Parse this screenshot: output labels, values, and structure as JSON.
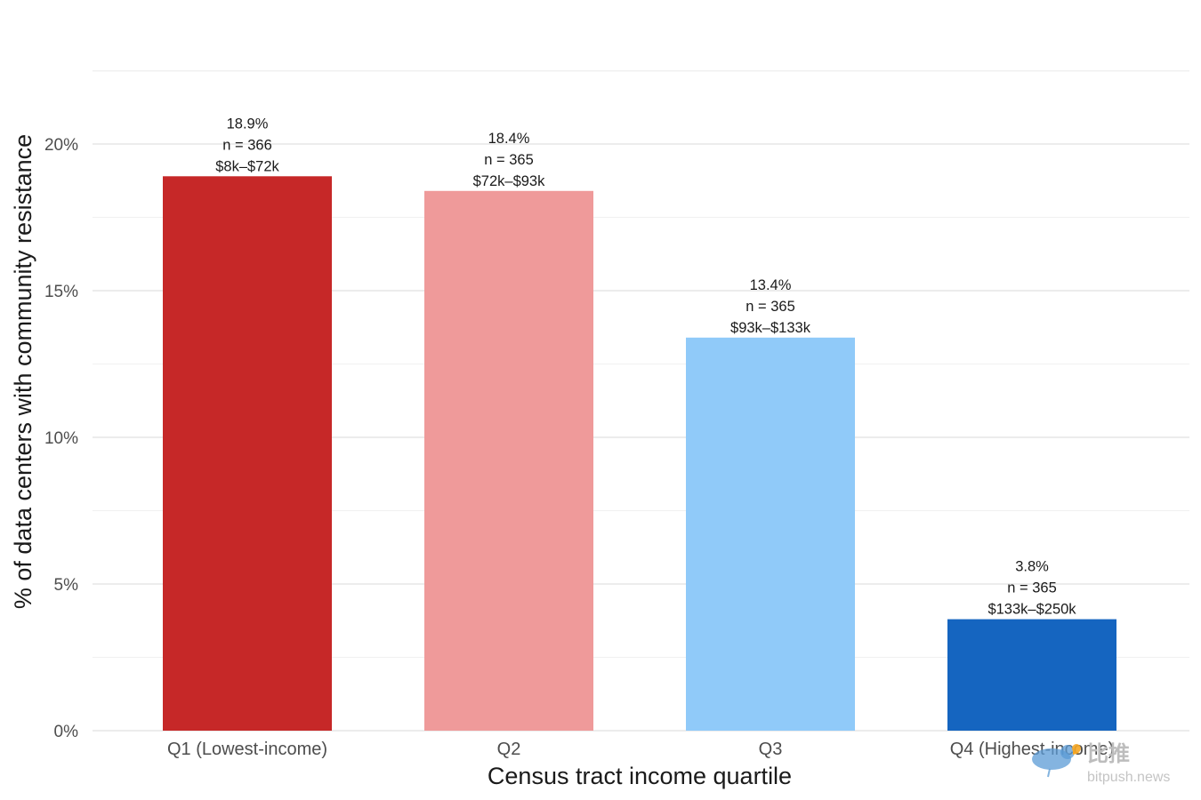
{
  "chart_data": {
    "type": "bar",
    "categories": [
      "Q1 (Lowest-income)",
      "Q2",
      "Q3",
      "Q4 (Highest-income)"
    ],
    "values": [
      18.9,
      18.4,
      13.4,
      3.8
    ],
    "value_labels": [
      "18.9%",
      "18.4%",
      "13.4%",
      "3.8%"
    ],
    "n_labels": [
      "n = 366",
      "n = 365",
      "n = 365",
      "n = 365"
    ],
    "range_labels": [
      "$8k–$72k",
      "$72k–$93k",
      "$93k–$133k",
      "$133k–$250k"
    ],
    "bar_colors": [
      "#c62828",
      "#ef9a9a",
      "#90caf9",
      "#1565c0"
    ],
    "xlabel": "Census tract income quartile",
    "ylabel": "% of data centers with community resistance",
    "ylim": [
      0,
      20
    ],
    "y_ticks": [
      0,
      5,
      10,
      15,
      20
    ],
    "y_tick_labels": [
      "0%",
      "5%",
      "10%",
      "15%",
      "20%"
    ],
    "grid": true,
    "legend": "none"
  },
  "watermark": {
    "icon": "bird-icon",
    "text": "比推",
    "subtext": "bitpush.news"
  }
}
